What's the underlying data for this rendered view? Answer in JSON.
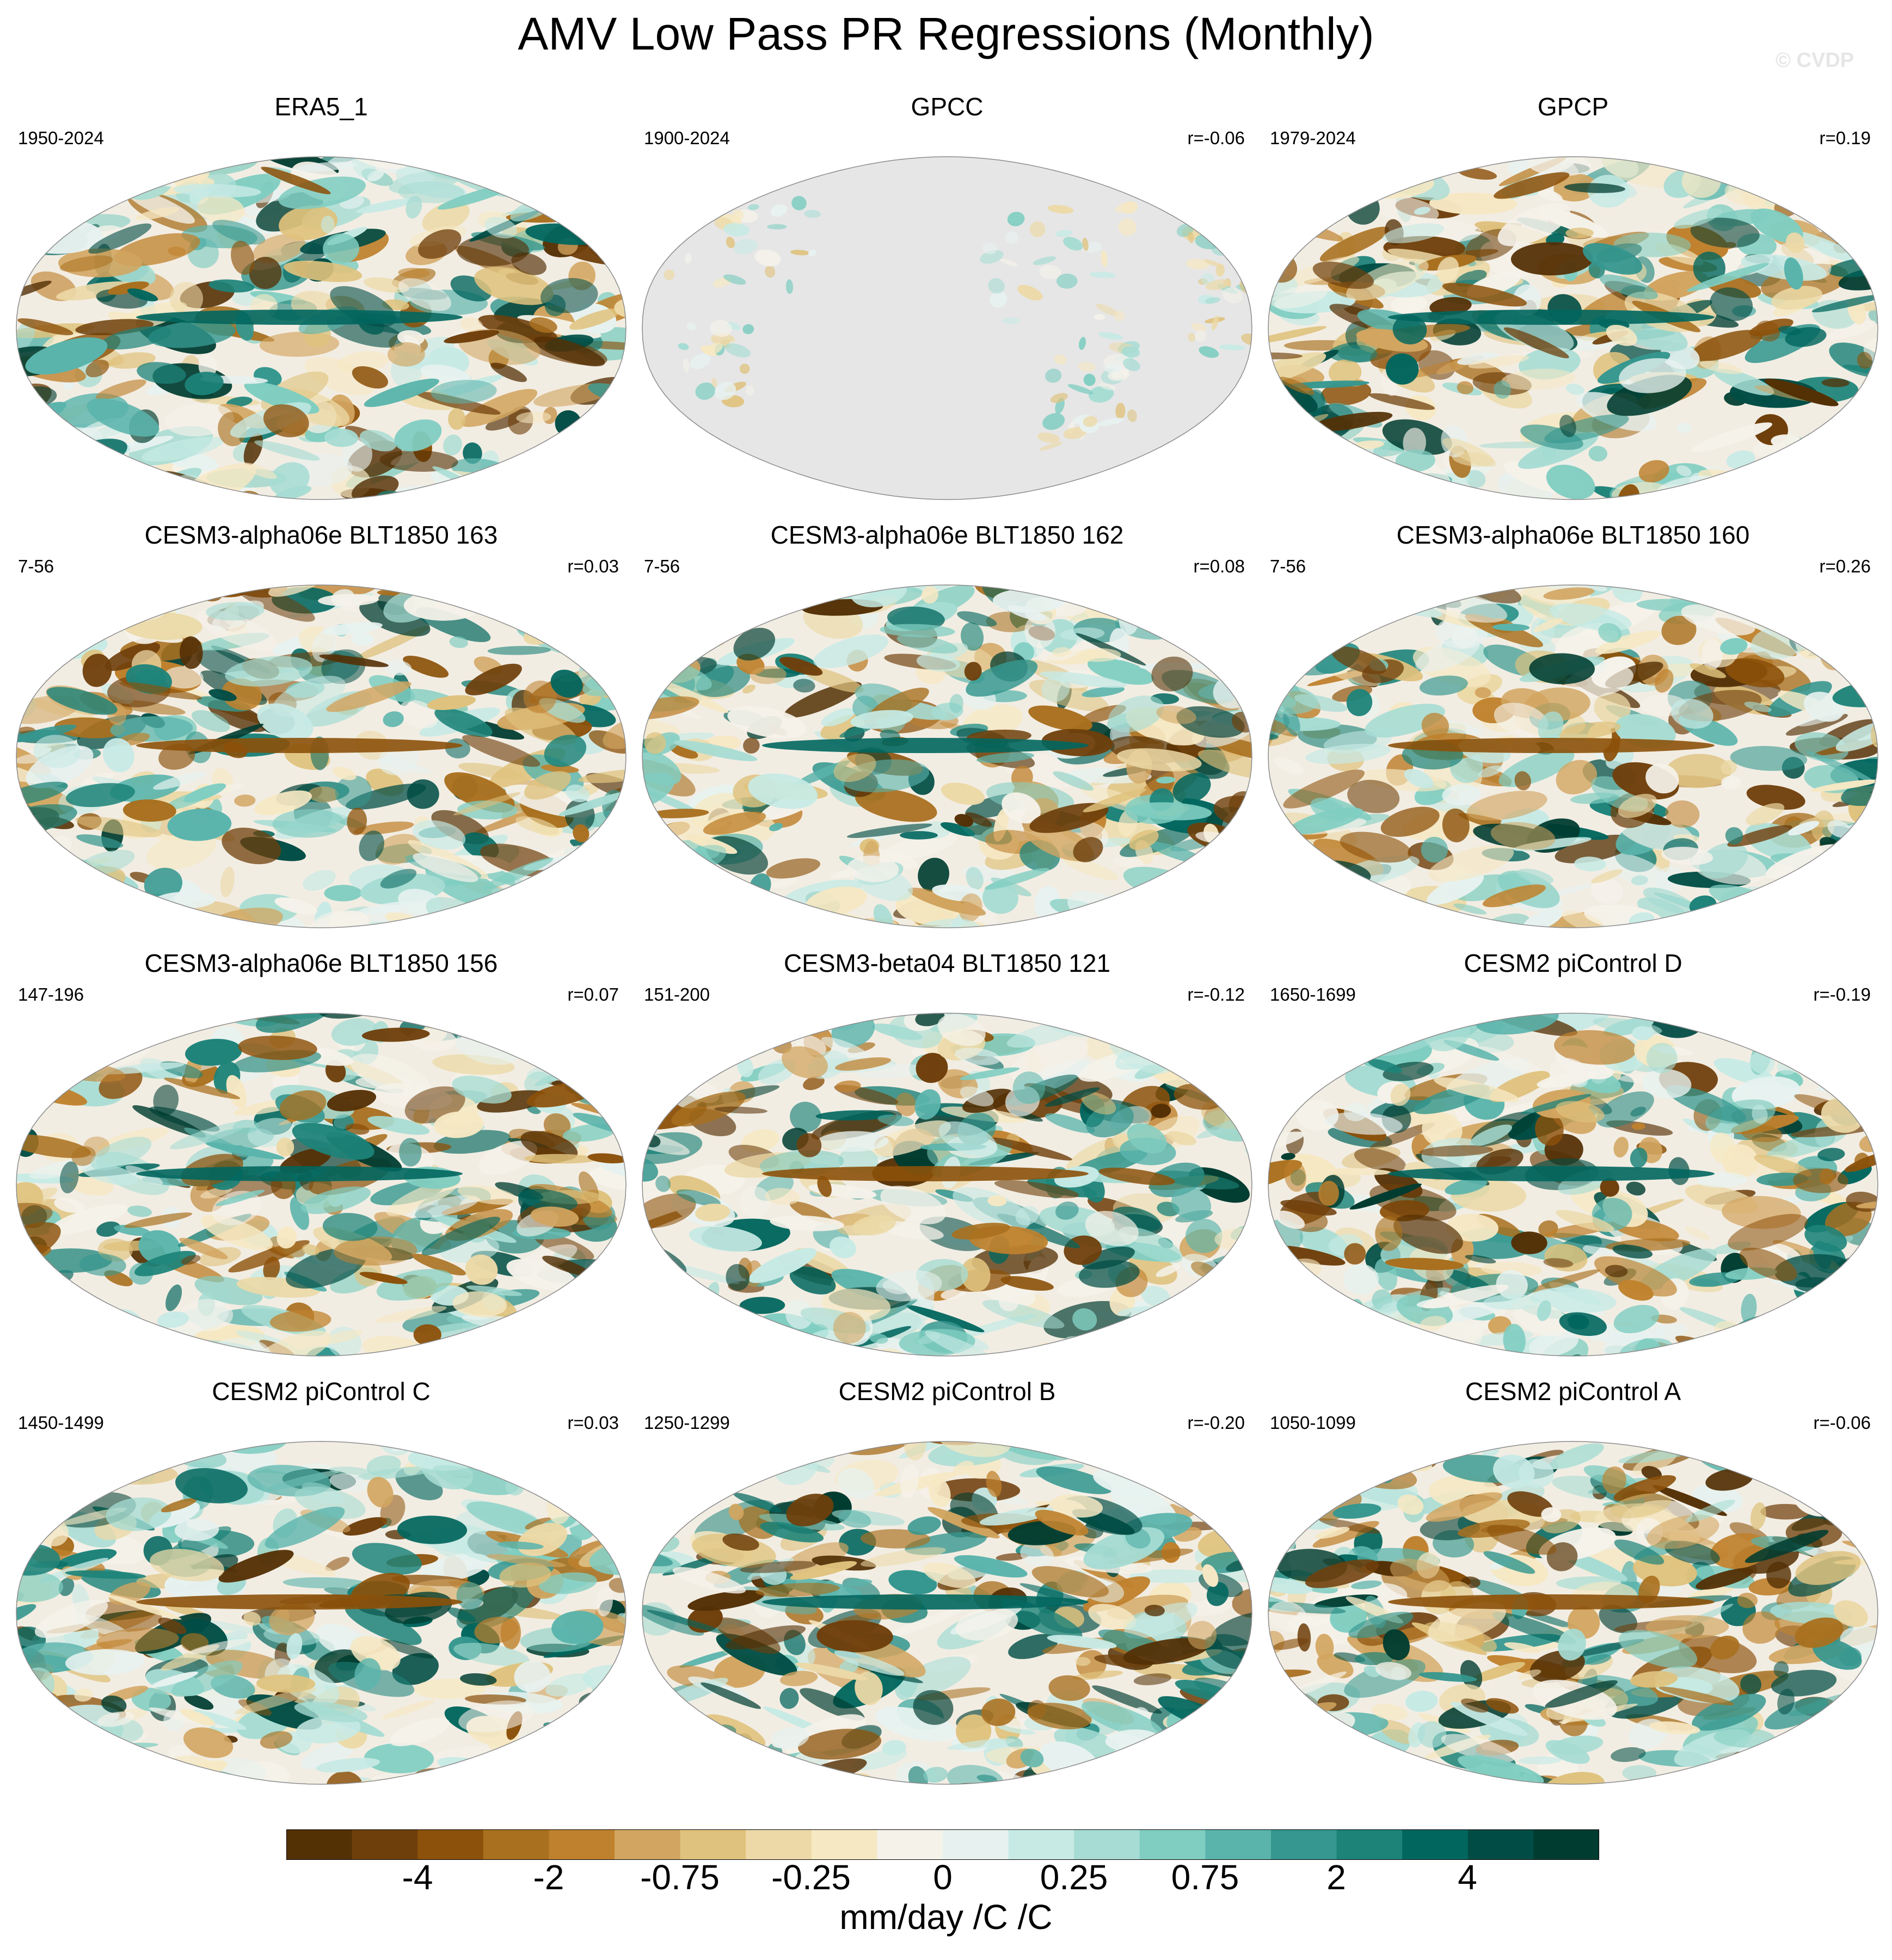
{
  "title": "AMV Low Pass PR Regressions (Monthly)",
  "copyright": "© CVDP",
  "colorbar": {
    "colors": [
      "#543005",
      "#6f3f0b",
      "#8c510a",
      "#a9701f",
      "#bf812d",
      "#d2a560",
      "#dfc27d",
      "#ecd9a7",
      "#f6e8c3",
      "#f5f2ea",
      "#e7f2f0",
      "#c7eae5",
      "#a6dcd3",
      "#80cdc1",
      "#5ab4ac",
      "#35978f",
      "#1d8379",
      "#01665e",
      "#014d45",
      "#003c30"
    ],
    "tick_labels": [
      "-4",
      "-2",
      "-0.75",
      "-0.25",
      "0",
      "0.25",
      "0.75",
      "2",
      "4"
    ],
    "units": "mm/day /C /C"
  },
  "panels": [
    {
      "title": "ERA5_1",
      "period": "1950-2024",
      "corr": ""
    },
    {
      "title": "GPCC",
      "period": "1900-2024",
      "corr": "r=-0.06"
    },
    {
      "title": "GPCP",
      "period": "1979-2024",
      "corr": "r=0.19"
    },
    {
      "title": "CESM3-alpha06e BLT1850 163",
      "period": "7-56",
      "corr": "r=0.03"
    },
    {
      "title": "CESM3-alpha06e BLT1850 162",
      "period": "7-56",
      "corr": "r=0.08"
    },
    {
      "title": "CESM3-alpha06e BLT1850 160",
      "period": "7-56",
      "corr": "r=0.26"
    },
    {
      "title": "CESM3-alpha06e BLT1850 156",
      "period": "147-196",
      "corr": "r=0.07"
    },
    {
      "title": "CESM3-beta04 BLT1850 121",
      "period": "151-200",
      "corr": "r=-0.12"
    },
    {
      "title": "CESM2 piControl D",
      "period": "1650-1699",
      "corr": "r=-0.19"
    },
    {
      "title": "CESM2 piControl C",
      "period": "1450-1499",
      "corr": "r=0.03"
    },
    {
      "title": "CESM2 piControl B",
      "period": "1250-1299",
      "corr": "r=-0.20"
    },
    {
      "title": "CESM2 piControl A",
      "period": "1050-1099",
      "corr": "r=-0.06"
    }
  ]
}
